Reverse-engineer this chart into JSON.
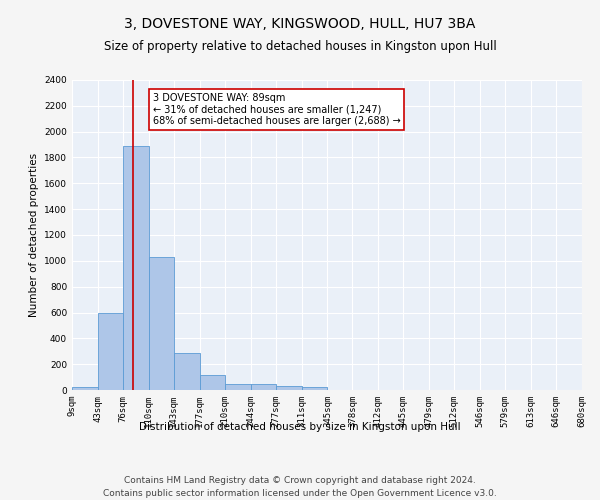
{
  "title": "3, DOVESTONE WAY, KINGSWOOD, HULL, HU7 3BA",
  "subtitle": "Size of property relative to detached houses in Kingston upon Hull",
  "xlabel_bottom": "Distribution of detached houses by size in Kingston upon Hull",
  "ylabel": "Number of detached properties",
  "bin_edges": [
    9,
    43,
    76,
    110,
    143,
    177,
    210,
    244,
    277,
    311,
    345,
    378,
    412,
    445,
    479,
    512,
    546,
    579,
    613,
    646,
    680
  ],
  "bar_heights": [
    20,
    600,
    1890,
    1030,
    290,
    115,
    50,
    45,
    30,
    20,
    0,
    0,
    0,
    0,
    0,
    0,
    0,
    0,
    0,
    0
  ],
  "bar_color": "#aec6e8",
  "bar_edge_color": "#5b9bd5",
  "property_size": 89,
  "red_line_color": "#cc0000",
  "annotation_line1": "3 DOVESTONE WAY: 89sqm",
  "annotation_line2": "← 31% of detached houses are smaller (1,247)",
  "annotation_line3": "68% of semi-detached houses are larger (2,688) →",
  "annotation_box_color": "#ffffff",
  "annotation_box_edge_color": "#cc0000",
  "ylim": [
    0,
    2400
  ],
  "yticks": [
    0,
    200,
    400,
    600,
    800,
    1000,
    1200,
    1400,
    1600,
    1800,
    2000,
    2200,
    2400
  ],
  "tick_labels": [
    "9sqm",
    "43sqm",
    "76sqm",
    "110sqm",
    "143sqm",
    "177sqm",
    "210sqm",
    "244sqm",
    "277sqm",
    "311sqm",
    "345sqm",
    "378sqm",
    "412sqm",
    "445sqm",
    "479sqm",
    "512sqm",
    "546sqm",
    "579sqm",
    "613sqm",
    "646sqm",
    "680sqm"
  ],
  "footer_line1": "Contains HM Land Registry data © Crown copyright and database right 2024.",
  "footer_line2": "Contains public sector information licensed under the Open Government Licence v3.0.",
  "bg_color": "#eaf0f8",
  "grid_color": "#ffffff",
  "fig_bg_color": "#f5f5f5",
  "title_fontsize": 10,
  "subtitle_fontsize": 8.5,
  "axis_label_fontsize": 7.5,
  "tick_fontsize": 6.5,
  "annotation_fontsize": 7,
  "footer_fontsize": 6.5
}
